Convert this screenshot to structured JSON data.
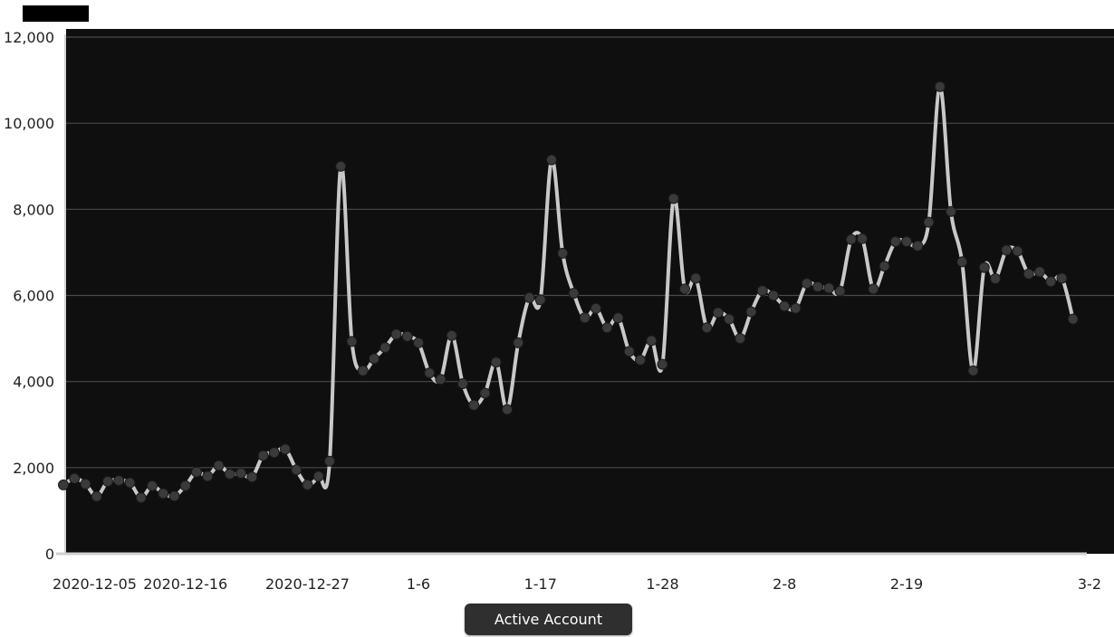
{
  "colors": {
    "plot_bg": "#0f0f0f",
    "grid": "#4a4a4a",
    "line": "#c8c8c8",
    "marker": "#3a3a3a",
    "legend_bg": "#2f2f2f"
  },
  "legend": {
    "label": "Active Account"
  },
  "chart_data": {
    "type": "line",
    "title": "",
    "xlabel": "",
    "ylabel": "",
    "ylim": [
      0,
      12000
    ],
    "yticks": [
      "0",
      "2,000",
      "4,000",
      "6,000",
      "8,000",
      "10,000",
      "12,000"
    ],
    "ytick_values": [
      0,
      2000,
      4000,
      6000,
      8000,
      10000,
      12000
    ],
    "xtick_labels": [
      "2020-12-05",
      "2020-12-16",
      "2020-12-27",
      "1-6",
      "1-17",
      "1-28",
      "2-8",
      "2-19",
      "3-2"
    ],
    "xtick_indices": [
      0,
      11,
      22,
      32,
      43,
      54,
      65,
      76,
      87
    ],
    "grid": true,
    "legend_position": "bottom-center",
    "series": [
      {
        "name": "Active Account",
        "values": [
          1600,
          1750,
          1620,
          1330,
          1680,
          1700,
          1650,
          1300,
          1580,
          1400,
          1340,
          1580,
          1900,
          1800,
          2050,
          1850,
          1870,
          1780,
          2280,
          2350,
          2430,
          1950,
          1600,
          1800,
          2150,
          9000,
          4930,
          4250,
          4530,
          4790,
          5100,
          5050,
          4900,
          4200,
          4050,
          5070,
          3950,
          3450,
          3730,
          4450,
          3350,
          4900,
          5950,
          5900,
          9150,
          6980,
          6050,
          5480,
          5700,
          5250,
          5480,
          4700,
          4500,
          4950,
          4400,
          8250,
          6150,
          6400,
          5250,
          5600,
          5450,
          5000,
          5620,
          6110,
          6000,
          5750,
          5700,
          6280,
          6200,
          6170,
          6100,
          7300,
          7320,
          6150,
          6680,
          7250,
          7250,
          7150,
          7700,
          10850,
          7950,
          6780,
          4250,
          6650,
          6390,
          7050,
          7030,
          6500,
          6550,
          6320,
          6400,
          5450
        ]
      }
    ]
  }
}
